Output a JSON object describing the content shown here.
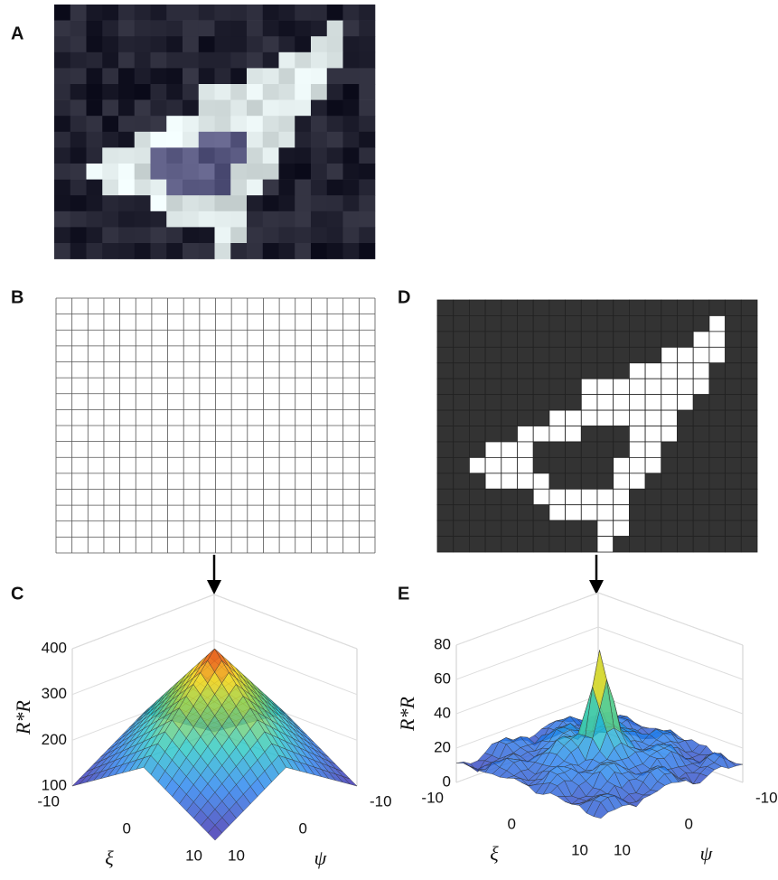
{
  "panel_labels": [
    "A",
    "B",
    "C",
    "D",
    "E"
  ],
  "plot_c": {
    "zlabel": "R*R",
    "xlabel": "ξ",
    "ylabel": "ψ",
    "zticks": [
      100,
      200,
      300,
      400
    ],
    "xticks": [
      -10,
      0,
      10
    ],
    "yticks": [
      -10,
      0,
      10
    ]
  },
  "plot_e": {
    "zlabel": "R*R",
    "xlabel": "ξ",
    "ylabel": "ψ",
    "zticks": [
      0,
      20,
      40,
      60,
      80
    ],
    "xticks": [
      -10,
      0,
      10
    ],
    "yticks": [
      -10,
      0,
      10
    ]
  }
}
